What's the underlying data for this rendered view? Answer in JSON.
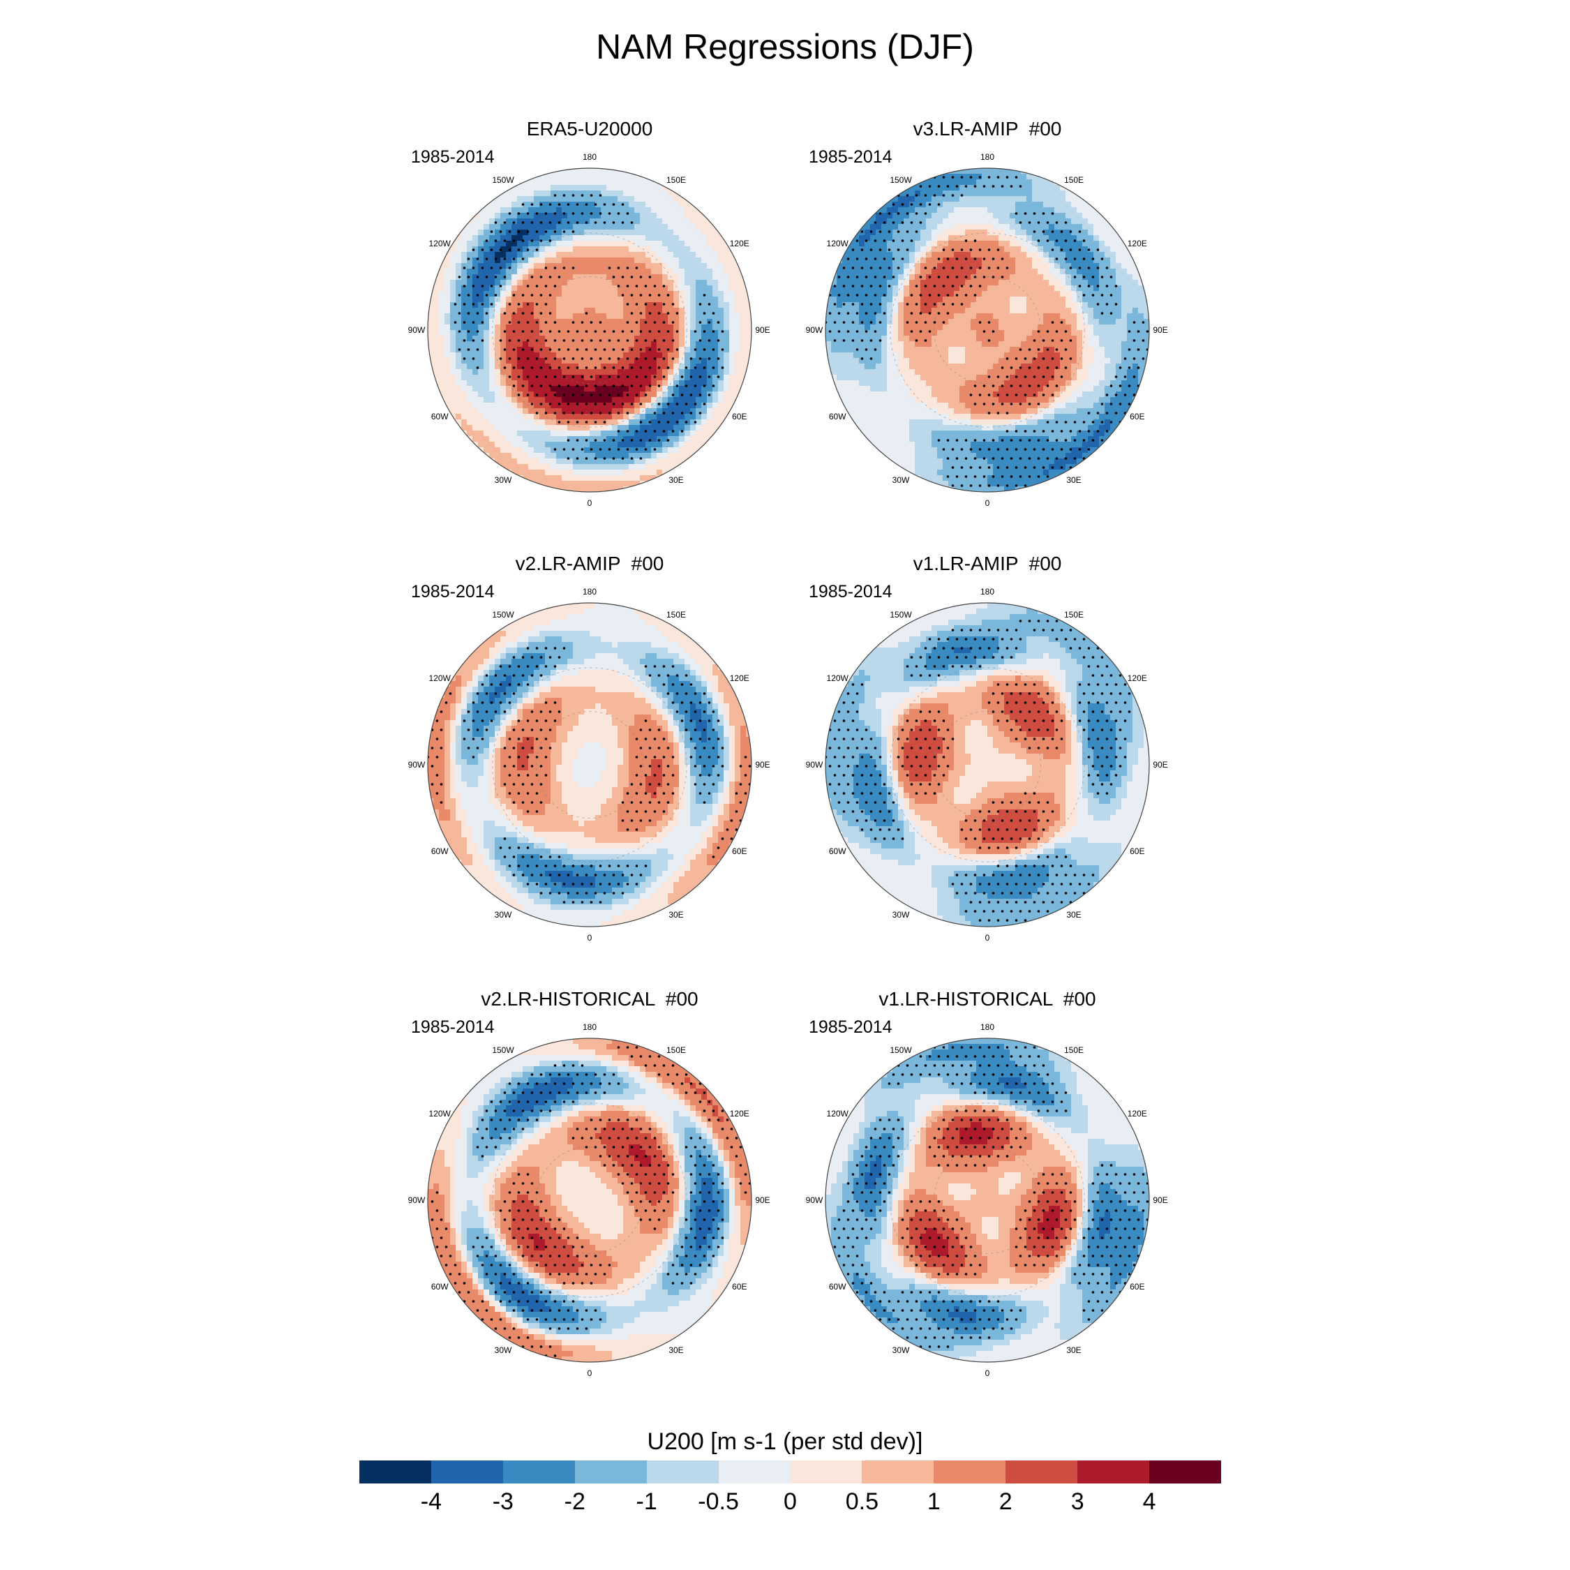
{
  "figure": {
    "title": "NAM Regressions (DJF)"
  },
  "panels": [
    {
      "title": "ERA5-U20000",
      "period": "1985-2014",
      "pattern": {
        "polar": 1.5,
        "ring1": 3.6,
        "ring2": -3.6,
        "outer": 0.6,
        "wave": 1,
        "phase": 0
      }
    },
    {
      "title": "v3.LR-AMIP  #00",
      "period": "1985-2014",
      "pattern": {
        "polar": 1.2,
        "ring1": 2.2,
        "ring2": -2.2,
        "outer": -2.6,
        "wave": 2,
        "phase": 40
      }
    },
    {
      "title": "v2.LR-AMIP  #00",
      "period": "1985-2014",
      "pattern": {
        "polar": -0.2,
        "ring1": 1.8,
        "ring2": -2.8,
        "outer": 1.2,
        "wave": 2,
        "phase": 80
      }
    },
    {
      "title": "v1.LR-AMIP  #00",
      "period": "1985-2014",
      "pattern": {
        "polar": 0.4,
        "ring1": 2.4,
        "ring2": -2.6,
        "outer": -1.4,
        "wave": 3,
        "phase": 20
      }
    },
    {
      "title": "v2.LR-HISTORICAL  #00",
      "period": "1985-2014",
      "pattern": {
        "polar": 0.2,
        "ring1": 2.6,
        "ring2": -3.2,
        "outer": 1.8,
        "wave": 2,
        "phase": 130
      }
    },
    {
      "title": "v1.LR-HISTORICAL  #00",
      "period": "1985-2014",
      "pattern": {
        "polar": 0.6,
        "ring1": 2.8,
        "ring2": -2.8,
        "outer": -1.8,
        "wave": 3,
        "phase": 70
      }
    }
  ],
  "longitude_labels": [
    {
      "text": "180",
      "lon": 180
    },
    {
      "text": "150E",
      "lon": 150
    },
    {
      "text": "120E",
      "lon": 120
    },
    {
      "text": "90E",
      "lon": 90
    },
    {
      "text": "60E",
      "lon": 60
    },
    {
      "text": "30E",
      "lon": 30
    },
    {
      "text": "0",
      "lon": 0
    },
    {
      "text": "30W",
      "lon": -30
    },
    {
      "text": "60W",
      "lon": -60
    },
    {
      "text": "90W",
      "lon": -90
    },
    {
      "text": "120W",
      "lon": -120
    },
    {
      "text": "150W",
      "lon": -150
    }
  ],
  "colorbar": {
    "title": "U200 [m s-1 (per std dev)]",
    "colors": [
      "#053061",
      "#2166ac",
      "#3a8bc2",
      "#7ab7da",
      "#bbd9ea",
      "#e8eef4",
      "#fbe6dc",
      "#f6b89a",
      "#e8896a",
      "#cf4c40",
      "#ac1a2c",
      "#6a0020"
    ],
    "levels": [
      -4,
      -3,
      -2,
      -1,
      -0.5,
      0,
      0.5,
      1,
      2,
      3,
      4
    ],
    "tick_labels": [
      "-4",
      "-3",
      "-2",
      "-1",
      "-0.5",
      "0",
      "0.5",
      "1",
      "2",
      "3",
      "4"
    ]
  }
}
